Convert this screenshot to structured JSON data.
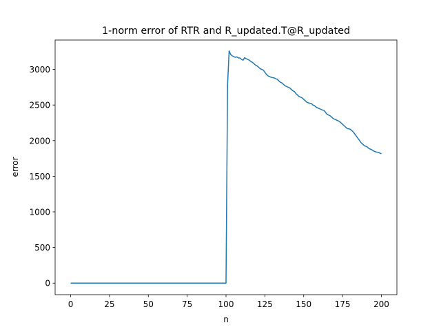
{
  "chart_data": {
    "type": "line",
    "title": "1-norm error of RTR and R_updated.T@R_updated",
    "x_label": "n",
    "y_label": "error",
    "x": [
      0,
      1,
      2,
      3,
      4,
      5,
      6,
      7,
      8,
      9,
      10,
      11,
      12,
      13,
      14,
      15,
      16,
      17,
      18,
      19,
      20,
      21,
      22,
      23,
      24,
      25,
      26,
      27,
      28,
      29,
      30,
      31,
      32,
      33,
      34,
      35,
      36,
      37,
      38,
      39,
      40,
      41,
      42,
      43,
      44,
      45,
      46,
      47,
      48,
      49,
      50,
      51,
      52,
      53,
      54,
      55,
      56,
      57,
      58,
      59,
      60,
      61,
      62,
      63,
      64,
      65,
      66,
      67,
      68,
      69,
      70,
      71,
      72,
      73,
      74,
      75,
      76,
      77,
      78,
      79,
      80,
      81,
      82,
      83,
      84,
      85,
      86,
      87,
      88,
      89,
      90,
      91,
      92,
      93,
      94,
      95,
      96,
      97,
      98,
      99,
      100,
      101,
      102,
      103,
      104,
      105,
      106,
      107,
      108,
      109,
      110,
      111,
      112,
      113,
      114,
      115,
      116,
      117,
      118,
      119,
      120,
      121,
      122,
      123,
      124,
      125,
      126,
      127,
      128,
      129,
      130,
      131,
      132,
      133,
      134,
      135,
      136,
      137,
      138,
      139,
      140,
      141,
      142,
      143,
      144,
      145,
      146,
      147,
      148,
      149,
      150,
      151,
      152,
      153,
      154,
      155,
      156,
      157,
      158,
      159,
      160,
      161,
      162,
      163,
      164,
      165,
      166,
      167,
      168,
      169,
      170,
      171,
      172,
      173,
      174,
      175,
      176,
      177,
      178,
      179,
      180,
      181,
      182,
      183,
      184,
      185,
      186,
      187,
      188,
      189,
      190,
      191,
      192,
      193,
      194,
      195,
      196,
      197,
      198,
      199,
      200
    ],
    "series": [
      {
        "color": "#1f77b4",
        "values": [
          0,
          0,
          0,
          0,
          0,
          0,
          0,
          0,
          0,
          0,
          0,
          0,
          0,
          0,
          0,
          0,
          0,
          0,
          0,
          0,
          0,
          0,
          0,
          0,
          0,
          0,
          0,
          0,
          0,
          0,
          0,
          0,
          0,
          0,
          0,
          0,
          0,
          0,
          0,
          0,
          0,
          0,
          0,
          0,
          0,
          0,
          0,
          0,
          0,
          0,
          0,
          0,
          0,
          0,
          0,
          0,
          0,
          0,
          0,
          0,
          0,
          0,
          0,
          0,
          0,
          0,
          0,
          0,
          0,
          0,
          0,
          0,
          0,
          0,
          0,
          0,
          0,
          0,
          0,
          0,
          0,
          0,
          0,
          0,
          0,
          0,
          0,
          0,
          0,
          0,
          0,
          0,
          0,
          0,
          0,
          0,
          0,
          0,
          0,
          0,
          0,
          2780,
          3260,
          3210,
          3190,
          3180,
          3170,
          3175,
          3160,
          3160,
          3140,
          3130,
          3165,
          3150,
          3140,
          3130,
          3110,
          3100,
          3080,
          3060,
          3050,
          3030,
          3010,
          3000,
          2990,
          2960,
          2930,
          2910,
          2900,
          2890,
          2885,
          2880,
          2870,
          2860,
          2840,
          2820,
          2810,
          2790,
          2770,
          2760,
          2750,
          2740,
          2720,
          2700,
          2690,
          2660,
          2640,
          2620,
          2610,
          2600,
          2580,
          2560,
          2540,
          2530,
          2525,
          2520,
          2500,
          2490,
          2470,
          2460,
          2450,
          2440,
          2430,
          2425,
          2400,
          2370,
          2360,
          2350,
          2330,
          2310,
          2300,
          2290,
          2280,
          2270,
          2250,
          2230,
          2210,
          2190,
          2170,
          2165,
          2160,
          2140,
          2120,
          2090,
          2060,
          2030,
          2000,
          1970,
          1950,
          1930,
          1920,
          1910,
          1890,
          1880,
          1870,
          1855,
          1845,
          1840,
          1835,
          1825,
          1815
        ]
      }
    ],
    "xlim": [
      -10,
      210
    ],
    "ylim": [
      -162.5,
      3412.5
    ],
    "xticks": [
      0,
      25,
      50,
      75,
      100,
      125,
      150,
      175,
      200
    ],
    "yticks": [
      0,
      500,
      1000,
      1500,
      2000,
      2500,
      3000
    ],
    "grid": false
  }
}
